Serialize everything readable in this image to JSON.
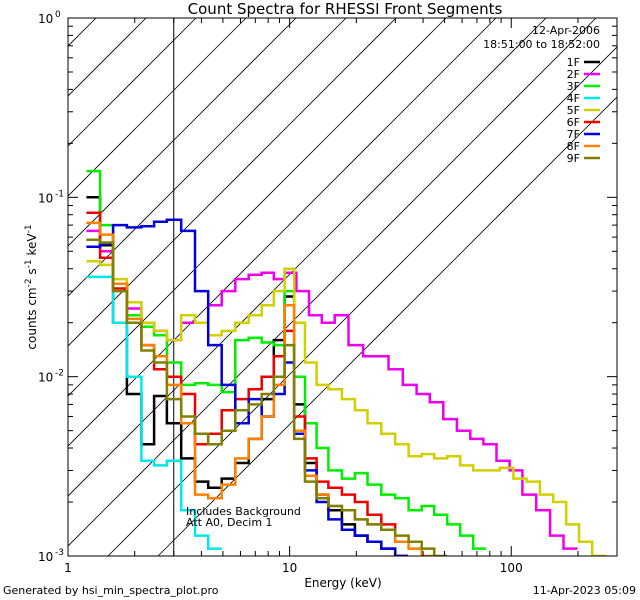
{
  "chart_data": {
    "type": "line",
    "title": "Count Spectra for RHESSI Front Segments",
    "xlabel": "Energy (keV)",
    "ylabel_main": "counts cm",
    "ylabel_exp1": "-2",
    "ylabel_mid1": " s",
    "ylabel_exp2": "-1",
    "ylabel_mid2": " keV",
    "ylabel_exp3": "-1",
    "x_scale": "log",
    "y_scale": "log",
    "xlim": [
      1,
      300
    ],
    "ylim": [
      0.001,
      1
    ],
    "x_ticks": [
      {
        "value": 1,
        "label": "1"
      },
      {
        "value": 10,
        "label": "10"
      },
      {
        "value": 100,
        "label": "100"
      }
    ],
    "y_ticks": [
      {
        "value": 0.001,
        "base": "10",
        "exp": "-3"
      },
      {
        "value": 0.01,
        "base": "10",
        "exp": "-2"
      },
      {
        "value": 0.1,
        "base": "10",
        "exp": "-1"
      },
      {
        "value": 1,
        "base": "10",
        "exp": "0"
      }
    ],
    "date": "12-Apr-2006",
    "time_range": "18:51:00 to 18:52:00",
    "shaded_region_end_kev": 3,
    "annotation_line1": "Includes Background",
    "annotation_line2": "Att A0, Decim 1",
    "footer_left": "Generated by hsi_min_spectra_plot.pro",
    "footer_right": "11-Apr-2023 05:09",
    "legend_placement": "top-right",
    "series": [
      {
        "name": "1F",
        "color": "#000000",
        "x": [
          1.3,
          1.5,
          1.7,
          2.0,
          2.3,
          2.6,
          3.0,
          3.5,
          4.0,
          4.6,
          5.3,
          6.1,
          7.0,
          8.0,
          9.0,
          10.0,
          11.0,
          12.5,
          14.0,
          16.0,
          18.5,
          21.0,
          24.0,
          28.0,
          32.0
        ],
        "values": [
          0.1,
          0.054,
          0.02,
          0.008,
          0.0042,
          0.0078,
          0.0055,
          0.0035,
          0.0026,
          0.0024,
          0.0027,
          0.0033,
          0.0045,
          0.0075,
          0.016,
          0.028,
          0.007,
          0.0033,
          0.0022,
          0.0018,
          0.0015,
          0.0013,
          0.0012,
          0.0011,
          0.001
        ]
      },
      {
        "name": "2F",
        "color": "#ee00ee",
        "x": [
          1.3,
          1.5,
          1.7,
          2.0,
          2.3,
          2.6,
          3.0,
          3.5,
          4.0,
          4.6,
          5.3,
          6.1,
          7.0,
          8.0,
          9.0,
          10.0,
          11.5,
          13.0,
          15.0,
          17.0,
          20.0,
          23.0,
          26.0,
          30.0,
          35.0,
          40.0,
          46.0,
          53.0,
          61.0,
          70.0,
          80.0,
          92.0,
          105.0,
          120.0,
          140.0,
          160.0,
          185.0
        ],
        "values": [
          0.065,
          0.05,
          0.033,
          0.024,
          0.02,
          0.018,
          0.016,
          0.02,
          0.02,
          0.025,
          0.03,
          0.035,
          0.037,
          0.038,
          0.035,
          0.038,
          0.03,
          0.022,
          0.02,
          0.022,
          0.015,
          0.013,
          0.013,
          0.011,
          0.009,
          0.008,
          0.0072,
          0.0058,
          0.005,
          0.0045,
          0.0042,
          0.0034,
          0.003,
          0.0022,
          0.0018,
          0.0013,
          0.0011
        ]
      },
      {
        "name": "3F",
        "color": "#00ee00",
        "x": [
          1.3,
          1.5,
          1.7,
          2.0,
          2.3,
          2.6,
          3.0,
          3.5,
          4.0,
          4.6,
          5.3,
          6.1,
          7.0,
          8.0,
          9.0,
          10.0,
          11.0,
          12.5,
          14.0,
          16.0,
          18.5,
          21.0,
          24.0,
          28.0,
          32.0,
          37.0,
          42.0,
          48.0,
          55.0,
          63.0,
          72.0
        ],
        "values": [
          0.14,
          0.07,
          0.033,
          0.022,
          0.019,
          0.017,
          0.012,
          0.009,
          0.0092,
          0.009,
          0.0082,
          0.016,
          0.0165,
          0.0155,
          0.015,
          0.03,
          0.01,
          0.0055,
          0.004,
          0.003,
          0.0027,
          0.0029,
          0.0025,
          0.0022,
          0.0021,
          0.0018,
          0.0019,
          0.0017,
          0.0015,
          0.0013,
          0.0011
        ]
      },
      {
        "name": "4F",
        "color": "#00e8e8",
        "x": [
          1.3,
          1.5,
          1.7,
          2.0,
          2.3,
          2.6,
          3.0,
          3.5,
          4.0,
          4.6
        ],
        "values": [
          0.036,
          0.036,
          0.02,
          0.01,
          0.0034,
          0.0032,
          0.0034,
          0.0018,
          0.0013,
          0.0011
        ]
      },
      {
        "name": "5F",
        "color": "#d0d000",
        "x": [
          1.3,
          1.5,
          1.7,
          2.0,
          2.3,
          2.6,
          3.0,
          3.5,
          4.0,
          4.6,
          5.3,
          6.1,
          7.0,
          8.0,
          9.0,
          10.0,
          11.0,
          12.5,
          14.0,
          16.0,
          18.5,
          21.0,
          24.0,
          28.0,
          32.0,
          37.0,
          42.0,
          48.0,
          55.0,
          63.0,
          72.0,
          83.0,
          95.0,
          110.0,
          125.0,
          145.0,
          165.0,
          190.0,
          215.0,
          250.0
        ],
        "values": [
          0.044,
          0.042,
          0.035,
          0.026,
          0.02,
          0.018,
          0.016,
          0.022,
          0.02,
          0.017,
          0.018,
          0.02,
          0.022,
          0.025,
          0.03,
          0.04,
          0.02,
          0.012,
          0.009,
          0.0085,
          0.0075,
          0.0065,
          0.0055,
          0.0048,
          0.0042,
          0.0036,
          0.0037,
          0.0035,
          0.0036,
          0.0032,
          0.003,
          0.003,
          0.0031,
          0.0027,
          0.0026,
          0.0022,
          0.002,
          0.0015,
          0.0012,
          0.001
        ]
      },
      {
        "name": "6F",
        "color": "#ee0000",
        "x": [
          1.3,
          1.5,
          1.7,
          2.0,
          2.3,
          2.6,
          3.0,
          3.5,
          4.0,
          4.6,
          5.3,
          6.1,
          7.0,
          8.0,
          9.0,
          10.0,
          11.0,
          12.5,
          14.0,
          16.0,
          18.5,
          21.0,
          24.0,
          28.0,
          32.0
        ],
        "values": [
          0.082,
          0.046,
          0.031,
          0.02,
          0.015,
          0.011,
          0.01,
          0.008,
          0.0042,
          0.0048,
          0.0065,
          0.0075,
          0.0085,
          0.01,
          0.013,
          0.018,
          0.006,
          0.0035,
          0.0026,
          0.0024,
          0.0022,
          0.002,
          0.0017,
          0.0015,
          0.0012
        ]
      },
      {
        "name": "7F",
        "color": "#0000dd",
        "x": [
          1.3,
          1.5,
          1.7,
          2.0,
          2.3,
          2.6,
          3.0,
          3.5,
          4.0,
          4.6,
          5.3,
          6.1,
          7.0,
          8.0,
          9.0,
          10.0,
          11.0,
          12.5,
          14.0,
          16.0,
          18.5,
          21.0,
          24.0,
          28.0,
          32.0
        ],
        "values": [
          0.053,
          0.055,
          0.07,
          0.068,
          0.069,
          0.073,
          0.075,
          0.065,
          0.03,
          0.015,
          0.009,
          0.0055,
          0.0075,
          0.006,
          0.008,
          0.012,
          0.0048,
          0.003,
          0.002,
          0.0016,
          0.0014,
          0.0013,
          0.0012,
          0.0011,
          0.001
        ]
      },
      {
        "name": "8F",
        "color": "#ff8000",
        "x": [
          1.3,
          1.5,
          1.7,
          2.0,
          2.3,
          2.6,
          3.0,
          3.5,
          4.0,
          4.6,
          5.3,
          6.1,
          7.0,
          8.0,
          9.0,
          10.0,
          11.0,
          12.5,
          14.0,
          16.0,
          18.5,
          21.0,
          24.0,
          28.0,
          32.0,
          37.0,
          42.0
        ],
        "values": [
          0.072,
          0.062,
          0.033,
          0.021,
          0.015,
          0.013,
          0.009,
          0.0055,
          0.0022,
          0.0021,
          0.0025,
          0.0035,
          0.0045,
          0.006,
          0.009,
          0.025,
          0.005,
          0.0028,
          0.0022,
          0.0019,
          0.0018,
          0.0016,
          0.0015,
          0.0014,
          0.0012,
          0.0011,
          0.001
        ]
      },
      {
        "name": "9F",
        "color": "#808000",
        "x": [
          1.3,
          1.5,
          1.7,
          2.0,
          2.3,
          2.6,
          3.0,
          3.5,
          4.0,
          4.6,
          5.3,
          6.1,
          7.0,
          8.0,
          9.0,
          10.0,
          11.0,
          12.5,
          14.0,
          16.0,
          18.5,
          21.0,
          24.0,
          28.0,
          32.0,
          37.0,
          42.0,
          48.0
        ],
        "values": [
          0.058,
          0.056,
          0.03,
          0.02,
          0.014,
          0.012,
          0.0075,
          0.006,
          0.0048,
          0.0042,
          0.005,
          0.0065,
          0.007,
          0.008,
          0.01,
          0.015,
          0.0045,
          0.0026,
          0.0021,
          0.0019,
          0.0018,
          0.0016,
          0.0015,
          0.0014,
          0.0013,
          0.0012,
          0.0011,
          0.001
        ]
      }
    ]
  }
}
